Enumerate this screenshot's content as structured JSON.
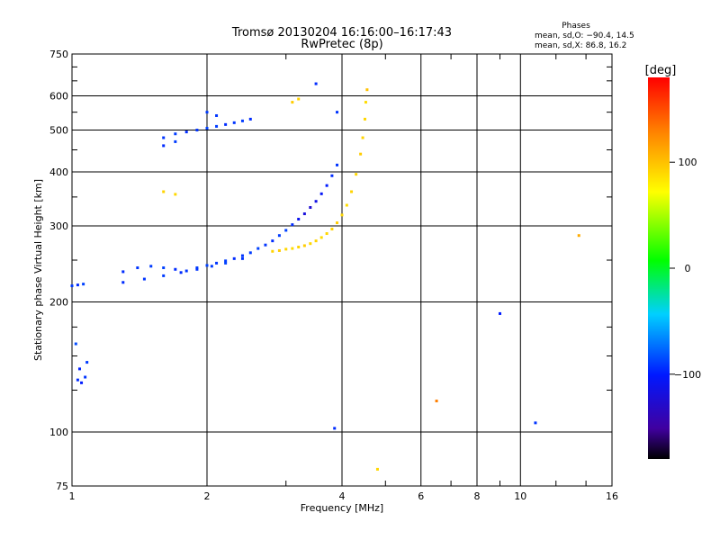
{
  "chart_data": {
    "type": "scatter",
    "title": "Tromsø 20130204  16:16:00–16:17:43",
    "subtitle": "RwPretec (8p)",
    "xlabel": "Frequency [MHz]",
    "ylabel": "Stationary phase Virtual Height [km]",
    "x_scale": "log",
    "y_scale": "log",
    "xlim": [
      1,
      16
    ],
    "ylim": [
      75,
      750
    ],
    "x_ticks": [
      1,
      2,
      4,
      6,
      8,
      10,
      16
    ],
    "x_tick_labels": [
      "1",
      "2",
      "4",
      "6",
      "8",
      "10",
      "16"
    ],
    "x_minor_ticks": [
      3,
      5,
      7,
      9,
      12,
      14
    ],
    "y_ticks": [
      75,
      100,
      200,
      300,
      400,
      500,
      600,
      750
    ],
    "y_tick_labels": [
      "75",
      "100",
      "200",
      "300",
      "400",
      "500",
      "600",
      "750"
    ],
    "y_minor_ticks": [
      125,
      150,
      175,
      250,
      350,
      450,
      550,
      650,
      700
    ],
    "grid": true,
    "stats": {
      "heading": "Phases",
      "line_o": "mean, sd,O: −90.4, 14.5",
      "line_x": "mean, sd,X:  86.8, 16.2"
    },
    "colorbar": {
      "label": "[deg]",
      "range": [
        -180,
        180
      ],
      "ticks": [
        100,
        0,
        -100
      ],
      "tick_labels": [
        "100",
        "0",
        "−100"
      ]
    },
    "series": [
      {
        "mode": "O",
        "points": [
          [
            1.0,
            218,
            -90
          ],
          [
            1.03,
            219,
            -95
          ],
          [
            1.06,
            220,
            -88
          ],
          [
            1.03,
            132,
            -95
          ],
          [
            1.05,
            130,
            -100
          ],
          [
            1.07,
            134,
            -92
          ],
          [
            1.04,
            140,
            -98
          ],
          [
            1.08,
            145,
            -90
          ],
          [
            1.02,
            160,
            -85
          ],
          [
            1.3,
            235,
            -95
          ],
          [
            1.4,
            240,
            -92
          ],
          [
            1.5,
            242,
            -90
          ],
          [
            1.6,
            240,
            -88
          ],
          [
            1.7,
            238,
            -95
          ],
          [
            1.8,
            236,
            -92
          ],
          [
            1.9,
            240,
            -90
          ],
          [
            2.0,
            243,
            -88
          ],
          [
            2.1,
            246,
            -92
          ],
          [
            2.2,
            249,
            -90
          ],
          [
            2.3,
            252,
            -95
          ],
          [
            2.4,
            256,
            -92
          ],
          [
            2.5,
            260,
            -90
          ],
          [
            2.6,
            266,
            -88
          ],
          [
            2.7,
            271,
            -92
          ],
          [
            2.8,
            277,
            -95
          ],
          [
            2.9,
            285,
            -90
          ],
          [
            3.0,
            293,
            -88
          ],
          [
            3.1,
            302,
            -95
          ],
          [
            3.2,
            311,
            -110
          ],
          [
            3.3,
            320,
            -120
          ],
          [
            3.4,
            331,
            -125
          ],
          [
            3.5,
            342,
            -115
          ],
          [
            3.6,
            356,
            -105
          ],
          [
            3.7,
            372,
            -100
          ],
          [
            3.8,
            392,
            -95
          ],
          [
            3.9,
            415,
            -92
          ],
          [
            1.3,
            222,
            -95
          ],
          [
            1.45,
            226,
            -92
          ],
          [
            1.6,
            230,
            -90
          ],
          [
            1.75,
            234,
            -95
          ],
          [
            1.9,
            238,
            -92
          ],
          [
            2.05,
            242,
            -90
          ],
          [
            2.2,
            246,
            -88
          ],
          [
            2.4,
            252,
            -92
          ],
          [
            1.6,
            480,
            -92
          ],
          [
            1.7,
            490,
            -90
          ],
          [
            1.8,
            495,
            -95
          ],
          [
            1.9,
            500,
            -92
          ],
          [
            2.0,
            505,
            -88
          ],
          [
            2.1,
            510,
            -90
          ],
          [
            2.2,
            515,
            -95
          ],
          [
            2.3,
            520,
            -92
          ],
          [
            2.4,
            525,
            -90
          ],
          [
            2.5,
            530,
            -95
          ],
          [
            2.0,
            550,
            -90
          ],
          [
            2.1,
            540,
            -92
          ],
          [
            1.6,
            460,
            -95
          ],
          [
            1.7,
            470,
            -90
          ],
          [
            3.9,
            550,
            -92
          ],
          [
            3.5,
            640,
            -95
          ],
          [
            3.85,
            102,
            -95
          ],
          [
            9.0,
            188,
            -100
          ],
          [
            10.8,
            105,
            -92
          ]
        ]
      },
      {
        "mode": "X",
        "points": [
          [
            2.8,
            262,
            92
          ],
          [
            2.9,
            263,
            95
          ],
          [
            3.0,
            265,
            90
          ],
          [
            3.1,
            266,
            88
          ],
          [
            3.2,
            268,
            92
          ],
          [
            3.3,
            270,
            95
          ],
          [
            3.4,
            273,
            90
          ],
          [
            3.5,
            277,
            92
          ],
          [
            3.6,
            282,
            88
          ],
          [
            3.7,
            288,
            90
          ],
          [
            3.8,
            295,
            92
          ],
          [
            3.9,
            305,
            95
          ],
          [
            4.0,
            318,
            90
          ],
          [
            4.1,
            335,
            88
          ],
          [
            4.2,
            360,
            92
          ],
          [
            4.3,
            395,
            90
          ],
          [
            4.4,
            440,
            95
          ],
          [
            4.45,
            480,
            92
          ],
          [
            4.5,
            530,
            90
          ],
          [
            4.52,
            580,
            88
          ],
          [
            4.55,
            620,
            100
          ],
          [
            1.6,
            360,
            92
          ],
          [
            1.7,
            355,
            90
          ],
          [
            3.1,
            580,
            95
          ],
          [
            3.2,
            590,
            92
          ],
          [
            4.8,
            82,
            90
          ],
          [
            6.5,
            118,
            130
          ],
          [
            13.5,
            285,
            110
          ]
        ]
      }
    ]
  }
}
